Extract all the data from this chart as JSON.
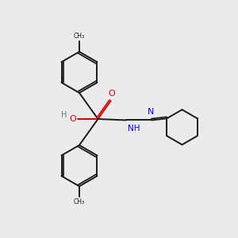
{
  "bg_color": "#ebebeb",
  "bond_color": "#1a1a1a",
  "bond_width": 1.4,
  "o_color": "#cc0000",
  "n_color": "#0000cc",
  "h_color": "#4a8888",
  "figsize": [
    3.0,
    3.0
  ],
  "dpi": 100,
  "xlim": [
    0,
    10
  ],
  "ylim": [
    0,
    10
  ]
}
